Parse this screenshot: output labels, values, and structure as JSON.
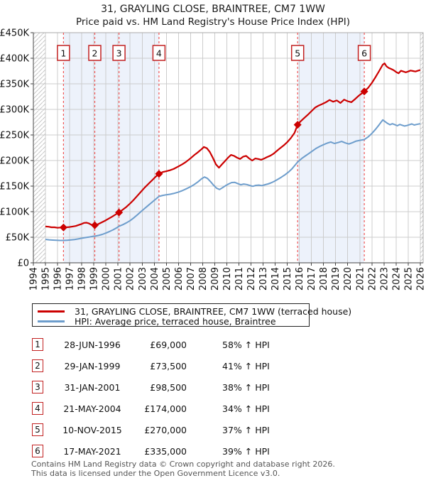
{
  "header": {
    "title": "31, GRAYLING CLOSE, BRAINTREE, CM7 1WW",
    "subtitle": "Price paid vs. HM Land Registry's House Price Index (HPI)"
  },
  "chart_data": {
    "type": "line",
    "title": "31, GRAYLING CLOSE, BRAINTREE, CM7 1WW",
    "subtitle": "Price paid vs. HM Land Registry's House Price Index (HPI)",
    "x_axis": {
      "min": 1994,
      "max": 2026.24,
      "ticks": [
        1994,
        1995,
        1996,
        1997,
        1998,
        1999,
        2000,
        2001,
        2002,
        2003,
        2004,
        2005,
        2006,
        2007,
        2008,
        2009,
        2010,
        2011,
        2012,
        2013,
        2014,
        2015,
        2016,
        2017,
        2018,
        2019,
        2020,
        2021,
        2022,
        2023,
        2024,
        2025,
        2026
      ]
    },
    "y_axis": {
      "min": 0,
      "max": 450000,
      "tick_values": [
        0,
        50000,
        100000,
        150000,
        200000,
        250000,
        300000,
        350000,
        400000,
        450000
      ],
      "tick_labels": [
        "£0",
        "£50K",
        "£100K",
        "£150K",
        "£200K",
        "£250K",
        "£300K",
        "£350K",
        "£400K",
        "£450K"
      ]
    },
    "colors": {
      "grid": "#cccccc",
      "band": "#edf2fb",
      "dashed": "#f05555",
      "hatch": "#c7c7c7",
      "axis": "#444444",
      "border": "#aaaaaa",
      "marker": "#cc0000",
      "box_border": "#c22121"
    },
    "shaded_bands": [
      [
        1996.49,
        2004.39
      ],
      [
        2015.86,
        2021.37
      ]
    ],
    "hatched_bands": [
      [
        1994,
        1995
      ],
      [
        2026.0,
        2026.24
      ]
    ],
    "sales_markers": [
      {
        "label": "1",
        "date": "28-JUN-1996",
        "year": 1996.49,
        "price": 69000,
        "price_label": "£69,000",
        "vs_hpi": "58% ↑ HPI"
      },
      {
        "label": "2",
        "date": "29-JAN-1999",
        "year": 1999.08,
        "price": 73500,
        "price_label": "£73,500",
        "vs_hpi": "41% ↑ HPI"
      },
      {
        "label": "3",
        "date": "31-JAN-2001",
        "year": 2001.08,
        "price": 98500,
        "price_label": "£98,500",
        "vs_hpi": "38% ↑ HPI"
      },
      {
        "label": "4",
        "date": "21-MAY-2004",
        "year": 2004.39,
        "price": 174000,
        "price_label": "£174,000",
        "vs_hpi": "34% ↑ HPI"
      },
      {
        "label": "5",
        "date": "10-NOV-2015",
        "year": 2015.86,
        "price": 270000,
        "price_label": "£270,000",
        "vs_hpi": "37% ↑ HPI"
      },
      {
        "label": "6",
        "date": "17-MAY-2021",
        "year": 2021.37,
        "price": 335000,
        "price_label": "£335,000",
        "vs_hpi": "39% ↑ HPI"
      }
    ],
    "series": [
      {
        "name": "31, GRAYLING CLOSE, BRAINTREE, CM7 1WW (terraced house)",
        "color": "#cc0000",
        "points": [
          [
            1995.0,
            71000
          ],
          [
            1995.25,
            70500
          ],
          [
            1995.5,
            69500
          ],
          [
            1995.75,
            69500
          ],
          [
            1996.0,
            68500
          ],
          [
            1996.25,
            69000
          ],
          [
            1996.49,
            69000
          ],
          [
            1996.75,
            69500
          ],
          [
            1997.0,
            70000
          ],
          [
            1997.25,
            71000
          ],
          [
            1997.5,
            72000
          ],
          [
            1997.75,
            74000
          ],
          [
            1998.0,
            76000
          ],
          [
            1998.2,
            78000
          ],
          [
            1998.4,
            78500
          ],
          [
            1998.6,
            77000
          ],
          [
            1998.8,
            74500
          ],
          [
            1999.08,
            73500
          ],
          [
            1999.3,
            75000
          ],
          [
            1999.6,
            78500
          ],
          [
            1999.9,
            82000
          ],
          [
            2000.2,
            86000
          ],
          [
            2000.5,
            90000
          ],
          [
            2000.8,
            94500
          ],
          [
            2001.08,
            98500
          ],
          [
            2001.4,
            104000
          ],
          [
            2001.7,
            109500
          ],
          [
            2002.0,
            116000
          ],
          [
            2002.3,
            123000
          ],
          [
            2002.6,
            131000
          ],
          [
            2002.9,
            139000
          ],
          [
            2003.2,
            147000
          ],
          [
            2003.5,
            154000
          ],
          [
            2003.8,
            161000
          ],
          [
            2004.1,
            168000
          ],
          [
            2004.39,
            174000
          ],
          [
            2004.7,
            177500
          ],
          [
            2005.0,
            179000
          ],
          [
            2005.3,
            181000
          ],
          [
            2005.6,
            183500
          ],
          [
            2006.0,
            188500
          ],
          [
            2006.3,
            192500
          ],
          [
            2006.6,
            197000
          ],
          [
            2007.0,
            204500
          ],
          [
            2007.3,
            210500
          ],
          [
            2007.6,
            216000
          ],
          [
            2007.9,
            222000
          ],
          [
            2008.1,
            226500
          ],
          [
            2008.35,
            224000
          ],
          [
            2008.6,
            216500
          ],
          [
            2008.85,
            205000
          ],
          [
            2009.1,
            192500
          ],
          [
            2009.35,
            186000
          ],
          [
            2009.6,
            192500
          ],
          [
            2009.85,
            199000
          ],
          [
            2010.1,
            205500
          ],
          [
            2010.35,
            211000
          ],
          [
            2010.6,
            209000
          ],
          [
            2010.85,
            205500
          ],
          [
            2011.1,
            203000
          ],
          [
            2011.35,
            207500
          ],
          [
            2011.6,
            209000
          ],
          [
            2011.85,
            204000
          ],
          [
            2012.1,
            200000
          ],
          [
            2012.35,
            204000
          ],
          [
            2012.6,
            203000
          ],
          [
            2012.85,
            201500
          ],
          [
            2013.1,
            204000
          ],
          [
            2013.35,
            207000
          ],
          [
            2013.6,
            209500
          ],
          [
            2013.85,
            213000
          ],
          [
            2014.1,
            218000
          ],
          [
            2014.4,
            224000
          ],
          [
            2014.7,
            229500
          ],
          [
            2015.0,
            236000
          ],
          [
            2015.3,
            244000
          ],
          [
            2015.6,
            254000
          ],
          [
            2015.86,
            270000
          ],
          [
            2016.1,
            276500
          ],
          [
            2016.4,
            283000
          ],
          [
            2016.7,
            289500
          ],
          [
            2017.0,
            296500
          ],
          [
            2017.3,
            303500
          ],
          [
            2017.6,
            307500
          ],
          [
            2017.9,
            310500
          ],
          [
            2018.2,
            314000
          ],
          [
            2018.5,
            318500
          ],
          [
            2018.8,
            315000
          ],
          [
            2019.1,
            317500
          ],
          [
            2019.4,
            312500
          ],
          [
            2019.7,
            319000
          ],
          [
            2020.0,
            316000
          ],
          [
            2020.3,
            314000
          ],
          [
            2020.6,
            320000
          ],
          [
            2020.9,
            326500
          ],
          [
            2021.37,
            335000
          ],
          [
            2021.7,
            342500
          ],
          [
            2022.0,
            352000
          ],
          [
            2022.3,
            363000
          ],
          [
            2022.6,
            375000
          ],
          [
            2022.9,
            387500
          ],
          [
            2023.05,
            390000
          ],
          [
            2023.2,
            384500
          ],
          [
            2023.4,
            381000
          ],
          [
            2023.6,
            379000
          ],
          [
            2023.8,
            376500
          ],
          [
            2024.0,
            373000
          ],
          [
            2024.2,
            370500
          ],
          [
            2024.4,
            375500
          ],
          [
            2024.6,
            374000
          ],
          [
            2024.8,
            372500
          ],
          [
            2025.0,
            374000
          ],
          [
            2025.2,
            376000
          ],
          [
            2025.4,
            375000
          ],
          [
            2025.6,
            374000
          ],
          [
            2025.8,
            375500
          ],
          [
            2026.0,
            377000
          ]
        ]
      },
      {
        "name": "HPI: Average price, terraced house, Braintree",
        "color": "#6d9dcc",
        "points": [
          [
            1995.0,
            45800
          ],
          [
            1995.3,
            45000
          ],
          [
            1995.6,
            44400
          ],
          [
            1995.9,
            44000
          ],
          [
            1996.2,
            43800
          ],
          [
            1996.49,
            43700
          ],
          [
            1996.8,
            44200
          ],
          [
            1997.1,
            44800
          ],
          [
            1997.4,
            45600
          ],
          [
            1997.7,
            46600
          ],
          [
            1998.0,
            48000
          ],
          [
            1998.3,
            49300
          ],
          [
            1998.6,
            50300
          ],
          [
            1998.9,
            51600
          ],
          [
            1999.08,
            52100
          ],
          [
            1999.4,
            53600
          ],
          [
            1999.7,
            55600
          ],
          [
            2000.0,
            58200
          ],
          [
            2000.3,
            61200
          ],
          [
            2000.6,
            64600
          ],
          [
            2000.9,
            68600
          ],
          [
            2001.08,
            71400
          ],
          [
            2001.4,
            74600
          ],
          [
            2001.7,
            78200
          ],
          [
            2002.0,
            82400
          ],
          [
            2002.3,
            87800
          ],
          [
            2002.6,
            93800
          ],
          [
            2002.9,
            100200
          ],
          [
            2003.2,
            106200
          ],
          [
            2003.5,
            112200
          ],
          [
            2003.8,
            118200
          ],
          [
            2004.1,
            124200
          ],
          [
            2004.39,
            129900
          ],
          [
            2004.7,
            131800
          ],
          [
            2005.0,
            133000
          ],
          [
            2005.3,
            134000
          ],
          [
            2005.6,
            135600
          ],
          [
            2006.0,
            138400
          ],
          [
            2006.3,
            141000
          ],
          [
            2006.6,
            144200
          ],
          [
            2007.0,
            148800
          ],
          [
            2007.3,
            153000
          ],
          [
            2007.6,
            158000
          ],
          [
            2007.9,
            164000
          ],
          [
            2008.15,
            167800
          ],
          [
            2008.4,
            165000
          ],
          [
            2008.65,
            158800
          ],
          [
            2008.9,
            152000
          ],
          [
            2009.15,
            146000
          ],
          [
            2009.4,
            143400
          ],
          [
            2009.65,
            147000
          ],
          [
            2009.9,
            151000
          ],
          [
            2010.15,
            154200
          ],
          [
            2010.4,
            157000
          ],
          [
            2010.65,
            157400
          ],
          [
            2010.9,
            155000
          ],
          [
            2011.15,
            152600
          ],
          [
            2011.4,
            154000
          ],
          [
            2011.65,
            153000
          ],
          [
            2011.9,
            151200
          ],
          [
            2012.15,
            149600
          ],
          [
            2012.4,
            151400
          ],
          [
            2012.65,
            152000
          ],
          [
            2012.9,
            151000
          ],
          [
            2013.15,
            152600
          ],
          [
            2013.4,
            154200
          ],
          [
            2013.65,
            156200
          ],
          [
            2013.9,
            159000
          ],
          [
            2014.2,
            163000
          ],
          [
            2014.5,
            167200
          ],
          [
            2014.8,
            172000
          ],
          [
            2015.1,
            177400
          ],
          [
            2015.4,
            184000
          ],
          [
            2015.86,
            197100
          ],
          [
            2016.2,
            204000
          ],
          [
            2016.5,
            209000
          ],
          [
            2016.8,
            214000
          ],
          [
            2017.1,
            219000
          ],
          [
            2017.4,
            224000
          ],
          [
            2017.7,
            227800
          ],
          [
            2018.0,
            231000
          ],
          [
            2018.3,
            234000
          ],
          [
            2018.6,
            236200
          ],
          [
            2018.9,
            233400
          ],
          [
            2019.2,
            235200
          ],
          [
            2019.5,
            237400
          ],
          [
            2019.8,
            234400
          ],
          [
            2020.1,
            232400
          ],
          [
            2020.4,
            235000
          ],
          [
            2020.7,
            238000
          ],
          [
            2021.0,
            239400
          ],
          [
            2021.37,
            241000
          ],
          [
            2021.7,
            246400
          ],
          [
            2022.0,
            253000
          ],
          [
            2022.3,
            261000
          ],
          [
            2022.6,
            270000
          ],
          [
            2022.9,
            279500
          ],
          [
            2023.1,
            276000
          ],
          [
            2023.3,
            272500
          ],
          [
            2023.5,
            270000
          ],
          [
            2023.7,
            272000
          ],
          [
            2023.9,
            270000
          ],
          [
            2024.1,
            268000
          ],
          [
            2024.3,
            270500
          ],
          [
            2024.5,
            269000
          ],
          [
            2024.7,
            267500
          ],
          [
            2024.9,
            268500
          ],
          [
            2025.1,
            270000
          ],
          [
            2025.3,
            271500
          ],
          [
            2025.5,
            269500
          ],
          [
            2025.7,
            270500
          ],
          [
            2026.0,
            272000
          ]
        ]
      }
    ]
  },
  "legend": {
    "items": [
      {
        "label": "31, GRAYLING CLOSE, BRAINTREE, CM7 1WW (terraced house)",
        "color": "#cc0000"
      },
      {
        "label": "HPI: Average price, terraced house, Braintree",
        "color": "#6d9dcc"
      }
    ]
  },
  "footer": {
    "line1": "Contains HM Land Registry data © Crown copyright and database right 2026.",
    "line2": "This data is licensed under the Open Government Licence v3.0."
  }
}
